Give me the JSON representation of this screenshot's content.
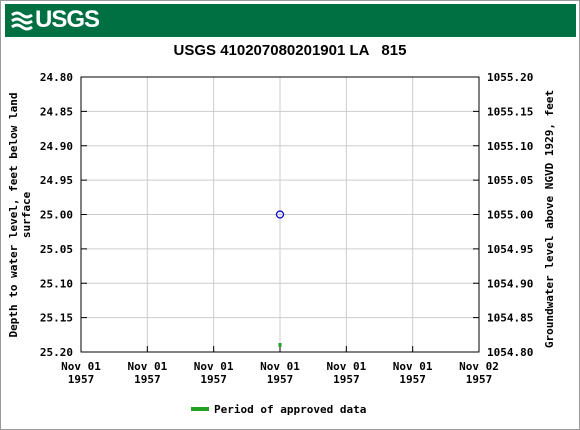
{
  "header": {
    "agency_logo_text": "USGS",
    "banner_color": "#006f41"
  },
  "chart_data": {
    "type": "scatter",
    "title": "USGS 410207080201901 LA   815",
    "y_left_label_line1": "Depth to water level, feet below land",
    "y_left_label_line2": "surface",
    "y_right_label": "Groundwater level above NGVD 1929, feet",
    "y_left_ticks": [
      "24.80",
      "24.85",
      "24.90",
      "24.95",
      "25.00",
      "25.05",
      "25.10",
      "25.15",
      "25.20"
    ],
    "y_right_ticks": [
      "1055.20",
      "1055.15",
      "1055.10",
      "1055.05",
      "1055.00",
      "1054.95",
      "1054.90",
      "1054.85",
      "1054.80"
    ],
    "y_left_range": [
      24.8,
      25.2
    ],
    "y_left_inverted": true,
    "y_right_range": [
      1055.2,
      1054.8
    ],
    "x_ticks": [
      {
        "line1": "Nov 01",
        "line2": "1957"
      },
      {
        "line1": "Nov 01",
        "line2": "1957"
      },
      {
        "line1": "Nov 01",
        "line2": "1957"
      },
      {
        "line1": "Nov 01",
        "line2": "1957"
      },
      {
        "line1": "Nov 01",
        "line2": "1957"
      },
      {
        "line1": "Nov 01",
        "line2": "1957"
      },
      {
        "line1": "Nov 02",
        "line2": "1957"
      }
    ],
    "grid": true,
    "points": [
      {
        "date": "1957-11-01 12:00",
        "depth_ft": 25.0
      }
    ],
    "approved_periods": [
      {
        "date": "1957-11-01 12:00"
      }
    ],
    "legend": {
      "label": "Period of approved data",
      "color": "#22a022",
      "placement": "bottom-center"
    },
    "point_color": "#0000cc"
  }
}
